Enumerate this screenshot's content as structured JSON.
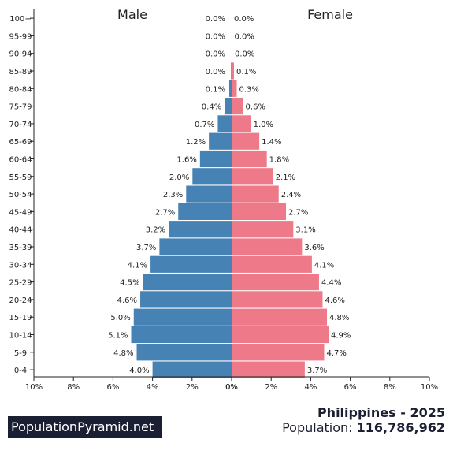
{
  "chart_data": {
    "type": "bar",
    "orientation": "horizontal-population-pyramid",
    "categories": [
      "100+",
      "95-99",
      "90-94",
      "85-89",
      "80-84",
      "75-79",
      "70-74",
      "65-69",
      "60-64",
      "55-59",
      "50-54",
      "45-49",
      "40-44",
      "35-39",
      "30-34",
      "25-29",
      "20-24",
      "15-19",
      "10-14",
      "5-9",
      "0-4"
    ],
    "series": [
      {
        "name": "Male",
        "color": "#4682b4",
        "values": [
          0.0,
          0.0,
          0.0,
          0.0,
          0.1,
          0.4,
          0.7,
          1.2,
          1.6,
          2.0,
          2.3,
          2.7,
          3.2,
          3.7,
          4.1,
          4.5,
          4.6,
          5.0,
          5.1,
          4.8,
          4.0
        ],
        "bar_values": [
          0.0,
          0.0,
          0.0,
          0.03,
          0.12,
          0.35,
          0.7,
          1.15,
          1.6,
          1.98,
          2.3,
          2.7,
          3.18,
          3.65,
          4.1,
          4.48,
          4.62,
          4.95,
          5.08,
          4.8,
          4.0
        ]
      },
      {
        "name": "Female",
        "color": "#ee7989",
        "values": [
          0.0,
          0.0,
          0.0,
          0.1,
          0.3,
          0.6,
          1.0,
          1.4,
          1.8,
          2.1,
          2.4,
          2.7,
          3.1,
          3.6,
          4.1,
          4.4,
          4.6,
          4.8,
          4.9,
          4.7,
          3.7
        ],
        "bar_values": [
          0.0,
          0.02,
          0.04,
          0.12,
          0.26,
          0.58,
          0.98,
          1.4,
          1.78,
          2.1,
          2.38,
          2.75,
          3.12,
          3.56,
          4.06,
          4.42,
          4.6,
          4.82,
          4.9,
          4.68,
          3.7
        ]
      }
    ],
    "value_labels": {
      "male": [
        "0.0%",
        "0.0%",
        "0.0%",
        "0.0%",
        "0.1%",
        "0.4%",
        "0.7%",
        "1.2%",
        "1.6%",
        "2.0%",
        "2.3%",
        "2.7%",
        "3.2%",
        "3.7%",
        "4.1%",
        "4.5%",
        "4.6%",
        "5.0%",
        "5.1%",
        "4.8%",
        "4.0%"
      ],
      "female": [
        "0.0%",
        "0.0%",
        "0.0%",
        "0.1%",
        "0.3%",
        "0.6%",
        "1.0%",
        "1.4%",
        "1.8%",
        "2.1%",
        "2.4%",
        "2.7%",
        "3.1%",
        "3.6%",
        "4.1%",
        "4.4%",
        "4.6%",
        "4.8%",
        "4.9%",
        "4.7%",
        "3.7%"
      ]
    },
    "xlim": [
      -10,
      10
    ],
    "x_ticks_left": [
      "10%",
      "8%",
      "6%",
      "4%",
      "2%",
      "0%"
    ],
    "x_ticks_right": [
      "0%",
      "2%",
      "4%",
      "6%",
      "8%",
      "10%"
    ],
    "grid": false,
    "labels": {
      "male": "Male",
      "female": "Female"
    }
  },
  "footer": {
    "brand": "PopulationPyramid.net",
    "country_year": "Philippines - 2025",
    "population_label": "Population: ",
    "population_value": "116,786,962"
  }
}
